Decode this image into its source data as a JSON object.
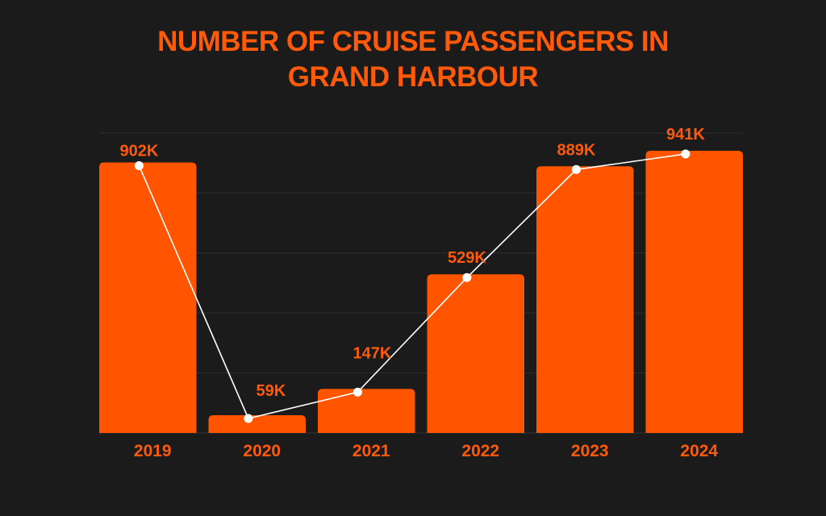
{
  "chart_data": {
    "type": "bar",
    "title": "NUMBER OF CRUISE PASSENGERS IN GRAND HARBOUR",
    "title_lines": [
      "NUMBER OF CRUISE PASSENGERS IN",
      "GRAND HARBOUR"
    ],
    "xlabel": "",
    "ylabel": "",
    "categories": [
      "2019",
      "2020",
      "2021",
      "2022",
      "2023",
      "2024"
    ],
    "values": [
      902,
      59,
      147,
      529,
      889,
      941
    ],
    "data_labels": [
      "902K",
      "59K",
      "147K",
      "529K",
      "889K",
      "941K"
    ],
    "units": "thousands of passengers",
    "ylim": [
      0,
      1000
    ],
    "y_gridlines": [
      0,
      200,
      400,
      600,
      800,
      1000
    ],
    "y_tick_labels_visible": false,
    "grid": true,
    "overlay_line": {
      "type": "line",
      "values": [
        902,
        59,
        147,
        529,
        889,
        941
      ],
      "markers": true
    },
    "legend": "none",
    "colors": {
      "background": "#1b1b1b",
      "bar": "#ff5500",
      "text": "#ff5a0a",
      "line": "#ffffff",
      "grid": "#2e2e2e"
    }
  }
}
